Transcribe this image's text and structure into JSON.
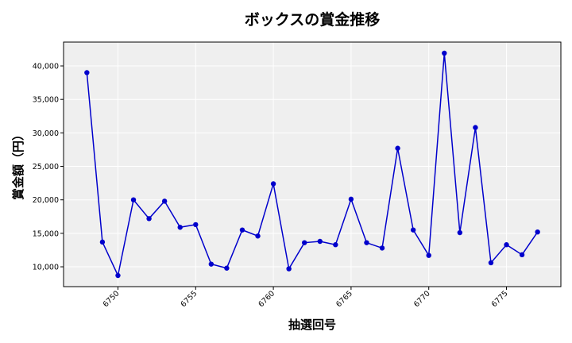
{
  "chart_data": {
    "type": "line",
    "title": "ボックスの賞金推移",
    "xlabel": "抽選回号",
    "ylabel": "賞金額（円）",
    "x": [
      6748,
      6749,
      6750,
      6751,
      6752,
      6753,
      6754,
      6755,
      6756,
      6757,
      6758,
      6759,
      6760,
      6761,
      6762,
      6763,
      6764,
      6765,
      6766,
      6767,
      6768,
      6769,
      6770,
      6771,
      6772,
      6773,
      6774,
      6775,
      6776,
      6777
    ],
    "series": [
      {
        "values": [
          39000,
          13700,
          8700,
          20000,
          17200,
          19800,
          15900,
          16300,
          10400,
          9800,
          15500,
          14600,
          22400,
          9700,
          13600,
          13800,
          13300,
          20100,
          13600,
          12800,
          27700,
          15500,
          11700,
          41900,
          15100,
          30800,
          10600,
          13300,
          11800,
          15200
        ],
        "color": "#0000cc"
      }
    ],
    "xticks": [
      6750,
      6755,
      6760,
      6765,
      6770,
      6775
    ],
    "xtick_labels": [
      "6750",
      "6755",
      "6760",
      "6765",
      "6770",
      "6775"
    ],
    "yticks": [
      10000,
      15000,
      20000,
      25000,
      30000,
      35000,
      40000
    ],
    "ytick_labels": [
      "10,000",
      "15,000",
      "20,000",
      "25,000",
      "30,000",
      "35,000",
      "40,000"
    ],
    "xlim": [
      6746.5,
      6778.5
    ],
    "ylim": [
      7040,
      43560
    ],
    "grid": true,
    "background": "#efefef",
    "gridcolor": "#ffffff"
  }
}
